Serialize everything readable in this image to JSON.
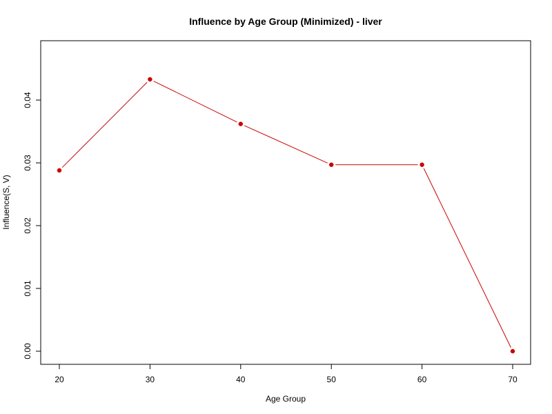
{
  "chart_data": {
    "type": "line",
    "title": "Influence by Age Group (Minimized) - liver",
    "xlabel": "Age Group",
    "ylabel": "Influence(S, V)",
    "x": [
      20,
      30,
      40,
      50,
      60,
      70
    ],
    "series": [
      {
        "values": [
          0.0288,
          0.0433,
          0.0362,
          0.0297,
          0.0297,
          0.0
        ],
        "color": "#cc0000"
      }
    ],
    "xlim": [
      20,
      70
    ],
    "ylim": [
      0.0,
      0.0433
    ],
    "x_ticks": [
      20,
      30,
      40,
      50,
      60,
      70
    ],
    "y_ticks": [
      0.0,
      0.01,
      0.02,
      0.03,
      0.04
    ],
    "x_tick_labels": [
      "20",
      "30",
      "40",
      "50",
      "60",
      "70"
    ],
    "y_tick_labels": [
      "0.00",
      "0.01",
      "0.02",
      "0.03",
      "0.04"
    ],
    "grid": false,
    "legend": "none"
  }
}
